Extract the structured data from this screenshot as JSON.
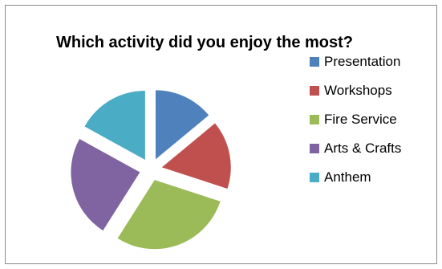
{
  "chart_data": {
    "type": "pie",
    "title": "Which activity did you enjoy the most?",
    "slices": [
      {
        "label": "Presentation",
        "value": 14,
        "color": "#4f81bd"
      },
      {
        "label": "Workshops",
        "value": 16,
        "color": "#c0504d"
      },
      {
        "label": "Fire Service",
        "value": 29,
        "color": "#9bbb59"
      },
      {
        "label": "Arts & Crafts",
        "value": 24,
        "color": "#8064a2"
      },
      {
        "label": "Anthem",
        "value": 17,
        "color": "#4bacc6"
      }
    ],
    "exploded": true,
    "legend_position": "right"
  }
}
